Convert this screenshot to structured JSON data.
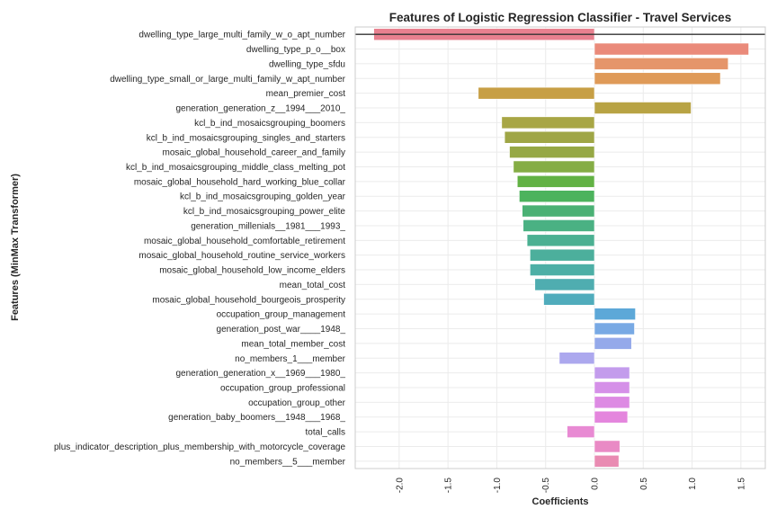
{
  "chart_data": {
    "type": "bar",
    "orientation": "horizontal",
    "title": "Features of Logistic Regression Classifier - Travel Services",
    "xlabel": "Coefficients",
    "ylabel": "Features (MinMax Transformer)",
    "xlim": [
      -2.45,
      1.75
    ],
    "xticks": [
      -2.0,
      -1.5,
      -1.0,
      -0.5,
      0.0,
      0.5,
      1.0,
      1.5
    ],
    "xtick_labels": [
      "-2.0",
      "-1.5",
      "-1.0",
      "-0.5",
      "0.0",
      "0.5",
      "1.0",
      "1.5"
    ],
    "grid": true,
    "categories": [
      "dwelling_type_large_multi_family_w_o_apt_number",
      "dwelling_type_p_o__box",
      "dwelling_type_sfdu",
      "dwelling_type_small_or_large_multi_family_w_apt_number",
      "mean_premier_cost",
      "generation_generation_z__1994___2010_",
      "kcl_b_ind_mosaicsgrouping_boomers",
      "kcl_b_ind_mosaicsgrouping_singles_and_starters",
      "mosaic_global_household_career_and_family",
      "kcl_b_ind_mosaicsgrouping_middle_class_melting_pot",
      "mosaic_global_household_hard_working_blue_collar",
      "kcl_b_ind_mosaicsgrouping_golden_year",
      "kcl_b_ind_mosaicsgrouping_power_elite",
      "generation_millenials__1981___1993_",
      "mosaic_global_household_comfortable_retirement",
      "mosaic_global_household_routine_service_workers",
      "mosaic_global_household_low_income_elders",
      "mean_total_cost",
      "mosaic_global_household_bourgeois_prosperity",
      "occupation_group_management",
      "generation_post_war____1948_",
      "mean_total_member_cost",
      "no_members_1___member",
      "generation_generation_x__1969___1980_",
      "occupation_group_professional",
      "occupation_group_other",
      "generation_baby_boomers__1948___1968_",
      "total_calls",
      "plus_indicator_description_plus_membership_with_motorcycle_coverage",
      "no_members__5___member"
    ],
    "values": [
      -2.26,
      1.58,
      1.37,
      1.29,
      -1.19,
      0.99,
      -0.95,
      -0.92,
      -0.87,
      -0.83,
      -0.79,
      -0.77,
      -0.74,
      -0.73,
      -0.69,
      -0.66,
      -0.66,
      -0.61,
      -0.52,
      0.42,
      0.41,
      0.38,
      -0.36,
      0.36,
      0.36,
      0.36,
      0.34,
      -0.28,
      0.26,
      0.25
    ],
    "colors": [
      "#e8808f",
      "#ea8a7a",
      "#e5956a",
      "#df9a58",
      "#c79f45",
      "#b8a344",
      "#a8a645",
      "#9fa646",
      "#96a845",
      "#85ad45",
      "#62b244",
      "#4cb35d",
      "#4ab174",
      "#4ab183",
      "#4bb092",
      "#4caf9c",
      "#4dafa6",
      "#4fadb0",
      "#50acbc",
      "#5da8d8",
      "#78a9e4",
      "#94a9ea",
      "#aca8ee",
      "#c39cec",
      "#d590e8",
      "#dd8ae3",
      "#e486dd",
      "#e88ad3",
      "#e98ac5",
      "#e98bb2"
    ]
  }
}
